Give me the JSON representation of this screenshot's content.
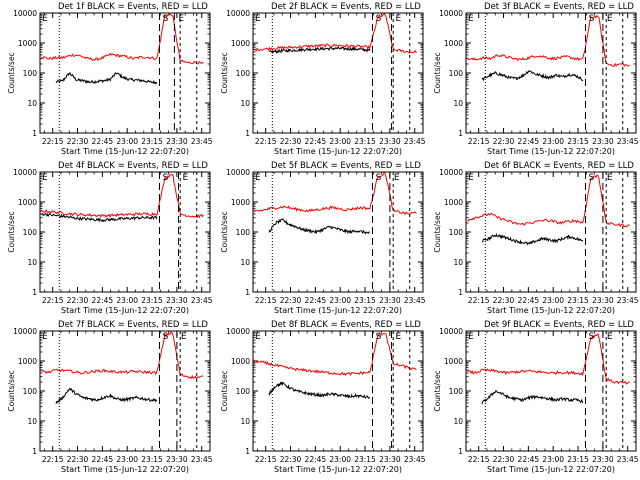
{
  "figure": {
    "xlabel": "Start Time (15-Jun-12 22:07:20)",
    "ylabel": "Counts/sec",
    "xtick_labels": [
      "22:15",
      "22:30",
      "22:45",
      "23:00",
      "23:15",
      "23:30",
      "23:45"
    ],
    "ytick_labels": [
      "1",
      "10",
      "100",
      "1000",
      "10000"
    ],
    "colors": {
      "events": "#000000",
      "lld": "#ff0000",
      "markers": "#000000"
    },
    "marker_labels": [
      "S",
      "E"
    ]
  },
  "chart_data": [
    {
      "type": "line",
      "title": "Det 1f BLACK = Events, RED = LLD",
      "yscale": "log",
      "ylim": [
        1,
        10000
      ],
      "xlim": [
        "22:07:20",
        "23:50:00"
      ],
      "markers": {
        "dotted": [
          "22:19:00"
        ],
        "dashed_start": "23:19:30",
        "dashed_end": "23:28:30",
        "end_markers": [
          "23:32:00",
          "23:42:00"
        ]
      },
      "series": [
        {
          "name": "Events",
          "start": "22:17:00",
          "end": "23:18:00",
          "samples": [
            50,
            55,
            100,
            60,
            55,
            50,
            52,
            55,
            60,
            100,
            70,
            60,
            58,
            55,
            50,
            48
          ]
        },
        {
          "name": "LLD",
          "start": "22:08:00",
          "end": "23:46:00",
          "samples": [
            350,
            300,
            320,
            330,
            400,
            380,
            300,
            280,
            320,
            420,
            380,
            350,
            300,
            340,
            330,
            300,
            8000,
            9000,
            250,
            220,
            230,
            200
          ]
        }
      ]
    },
    {
      "type": "line",
      "title": "Det 2f BLACK = Events, RED = LLD",
      "yscale": "log",
      "ylim": [
        1,
        10000
      ],
      "xlim": [
        "22:07:20",
        "23:50:00"
      ],
      "markers": {
        "dotted": [
          "22:19:00"
        ],
        "dashed_start": "23:19:30",
        "dashed_end": "23:31:00",
        "end_markers": [
          "23:32:00",
          "23:42:00"
        ]
      },
      "series": [
        {
          "name": "Events",
          "start": "22:17:00",
          "end": "23:18:00",
          "samples": [
            500,
            520,
            550,
            560,
            580,
            600,
            620,
            630,
            640,
            650,
            660,
            650,
            640,
            630,
            600,
            560
          ]
        },
        {
          "name": "LLD",
          "start": "22:08:00",
          "end": "23:46:00",
          "samples": [
            600,
            620,
            650,
            680,
            700,
            720,
            750,
            780,
            800,
            820,
            840,
            830,
            800,
            780,
            750,
            700,
            7000,
            9000,
            600,
            550,
            500,
            500
          ]
        }
      ]
    },
    {
      "type": "line",
      "title": "Det 3f BLACK = Events, RED = LLD",
      "yscale": "log",
      "ylim": [
        1,
        10000
      ],
      "xlim": [
        "22:07:20",
        "23:50:00"
      ],
      "markers": {
        "dotted": [
          "22:19:00"
        ],
        "dashed_start": "23:19:30",
        "dashed_end": "23:30:00",
        "end_markers": [
          "23:32:00",
          "23:42:00"
        ]
      },
      "series": [
        {
          "name": "Events",
          "start": "22:17:00",
          "end": "23:18:00",
          "samples": [
            60,
            80,
            100,
            85,
            70,
            65,
            80,
            120,
            90,
            80,
            70,
            85,
            75,
            90,
            80,
            60
          ]
        },
        {
          "name": "LLD",
          "start": "22:08:00",
          "end": "23:46:00",
          "samples": [
            300,
            280,
            320,
            300,
            400,
            350,
            300,
            280,
            320,
            380,
            350,
            300,
            320,
            350,
            300,
            280,
            7000,
            8000,
            200,
            180,
            200,
            170
          ]
        }
      ]
    },
    {
      "type": "line",
      "title": "Det 4f BLACK = Events, RED = LLD",
      "yscale": "log",
      "ylim": [
        1,
        10000
      ],
      "xlim": [
        "22:07:20",
        "23:50:00"
      ],
      "markers": {
        "dotted": [
          "22:19:00"
        ],
        "dashed_start": "23:19:30",
        "dashed_end": "23:31:00",
        "end_markers": [
          "23:32:00",
          "23:42:00"
        ]
      },
      "series": [
        {
          "name": "Events",
          "start": "22:08:00",
          "end": "23:18:00",
          "samples": [
            400,
            380,
            350,
            330,
            300,
            280,
            270,
            260,
            250,
            260,
            270,
            280,
            290,
            300,
            300,
            300
          ]
        },
        {
          "name": "LLD",
          "start": "22:08:00",
          "end": "23:46:00",
          "samples": [
            500,
            480,
            450,
            420,
            400,
            380,
            370,
            360,
            350,
            360,
            370,
            380,
            390,
            400,
            400,
            400,
            6000,
            9000,
            400,
            350,
            330,
            350
          ]
        }
      ]
    },
    {
      "type": "line",
      "title": "Det 5f BLACK = Events, RED = LLD",
      "yscale": "log",
      "ylim": [
        1,
        10000
      ],
      "xlim": [
        "22:07:20",
        "23:50:00"
      ],
      "markers": {
        "dotted": [
          "22:19:00"
        ],
        "dashed_start": "23:19:30",
        "dashed_end": "23:30:00",
        "end_markers": [
          "23:32:00",
          "23:42:00"
        ]
      },
      "series": [
        {
          "name": "Events",
          "start": "22:17:00",
          "end": "23:18:00",
          "samples": [
            100,
            200,
            250,
            180,
            150,
            120,
            110,
            100,
            120,
            150,
            130,
            110,
            100,
            110,
            100,
            90
          ]
        },
        {
          "name": "LLD",
          "start": "22:08:00",
          "end": "23:46:00",
          "samples": [
            500,
            520,
            600,
            650,
            700,
            600,
            550,
            500,
            550,
            600,
            650,
            600,
            550,
            600,
            650,
            600,
            7000,
            9000,
            500,
            450,
            400,
            450
          ]
        }
      ]
    },
    {
      "type": "line",
      "title": "Det 6f BLACK = Events, RED = LLD",
      "yscale": "log",
      "ylim": [
        1,
        10000
      ],
      "xlim": [
        "22:07:20",
        "23:50:00"
      ],
      "markers": {
        "dotted": [
          "22:19:00"
        ],
        "dashed_start": "23:19:30",
        "dashed_end": "23:30:00",
        "end_markers": [
          "23:32:00",
          "23:42:00"
        ]
      },
      "series": [
        {
          "name": "Events",
          "start": "22:17:00",
          "end": "23:18:00",
          "samples": [
            50,
            60,
            80,
            70,
            60,
            50,
            45,
            40,
            50,
            60,
            55,
            50,
            60,
            70,
            60,
            50
          ]
        },
        {
          "name": "LLD",
          "start": "22:08:00",
          "end": "23:46:00",
          "samples": [
            250,
            300,
            350,
            400,
            300,
            250,
            200,
            180,
            200,
            220,
            250,
            230,
            200,
            220,
            240,
            200,
            6000,
            8000,
            200,
            180,
            170,
            160
          ]
        }
      ]
    },
    {
      "type": "line",
      "title": "Det 7f BLACK = Events, RED = LLD",
      "yscale": "log",
      "ylim": [
        1,
        10000
      ],
      "xlim": [
        "22:07:20",
        "23:50:00"
      ],
      "markers": {
        "dotted": [
          "22:19:00"
        ],
        "dashed_start": "23:19:30",
        "dashed_end": "23:30:00",
        "end_markers": [
          "23:32:00",
          "23:42:00"
        ]
      },
      "series": [
        {
          "name": "Events",
          "start": "22:17:00",
          "end": "23:18:00",
          "samples": [
            40,
            60,
            120,
            80,
            60,
            55,
            50,
            60,
            70,
            55,
            50,
            55,
            60,
            55,
            50,
            50
          ]
        },
        {
          "name": "LLD",
          "start": "22:08:00",
          "end": "23:46:00",
          "samples": [
            450,
            420,
            500,
            480,
            450,
            400,
            420,
            450,
            480,
            450,
            430,
            420,
            450,
            430,
            420,
            400,
            7000,
            9000,
            350,
            300,
            280,
            300
          ]
        }
      ]
    },
    {
      "type": "line",
      "title": "Det 8f BLACK = Events, RED = LLD",
      "yscale": "log",
      "ylim": [
        1,
        10000
      ],
      "xlim": [
        "22:07:20",
        "23:50:00"
      ],
      "markers": {
        "dotted": [
          "22:19:00"
        ],
        "dashed_start": "23:19:30",
        "dashed_end": "23:31:00",
        "end_markers": [
          "23:32:00",
          "23:42:00"
        ]
      },
      "series": [
        {
          "name": "Events",
          "start": "22:17:00",
          "end": "23:18:00",
          "samples": [
            80,
            150,
            180,
            130,
            100,
            90,
            80,
            75,
            70,
            80,
            75,
            70,
            65,
            70,
            65,
            60
          ]
        },
        {
          "name": "LLD",
          "start": "22:08:00",
          "end": "23:46:00",
          "samples": [
            1000,
            900,
            800,
            700,
            600,
            550,
            500,
            480,
            450,
            420,
            400,
            380,
            370,
            380,
            400,
            420,
            7000,
            9000,
            800,
            700,
            600,
            500
          ]
        }
      ]
    },
    {
      "type": "line",
      "title": "Det 9f BLACK = Events, RED = LLD",
      "yscale": "log",
      "ylim": [
        1,
        10000
      ],
      "xlim": [
        "22:07:20",
        "23:50:00"
      ],
      "markers": {
        "dotted": [
          "22:19:00"
        ],
        "dashed_start": "23:19:30",
        "dashed_end": "23:30:00",
        "end_markers": [
          "23:32:00",
          "23:42:00"
        ]
      },
      "series": [
        {
          "name": "Events",
          "start": "22:17:00",
          "end": "23:18:00",
          "samples": [
            40,
            60,
            100,
            80,
            60,
            55,
            50,
            60,
            65,
            60,
            55,
            50,
            55,
            50,
            50,
            45
          ]
        },
        {
          "name": "LLD",
          "start": "22:08:00",
          "end": "23:46:00",
          "samples": [
            450,
            400,
            500,
            480,
            450,
            400,
            420,
            450,
            460,
            440,
            420,
            400,
            420,
            410,
            400,
            380,
            6000,
            8000,
            250,
            200,
            190,
            180
          ]
        }
      ]
    }
  ]
}
